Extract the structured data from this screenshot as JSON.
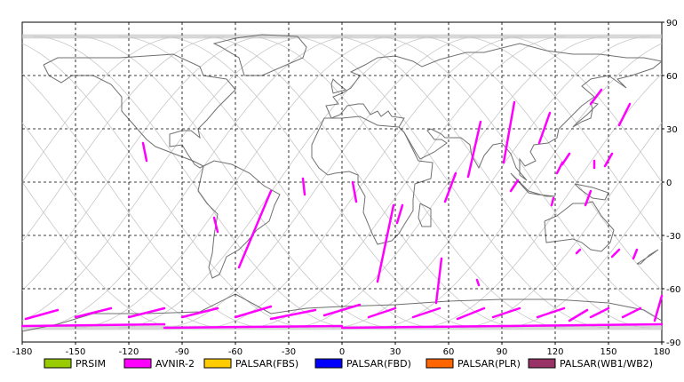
{
  "chart_data": {
    "type": "scatter",
    "title": "",
    "xlabel": "",
    "ylabel": "",
    "xlim": [
      -180,
      180
    ],
    "ylim": [
      -90,
      90
    ],
    "x_ticks": [
      -180,
      -150,
      -120,
      -90,
      -60,
      -30,
      0,
      30,
      60,
      90,
      120,
      150,
      180
    ],
    "y_ticks": [
      90,
      60,
      30,
      0,
      -30,
      -60,
      -90
    ],
    "x_tick_labels": [
      "-180",
      "-150",
      "-120",
      "-90",
      "-60",
      "-30",
      "0",
      "30",
      "60",
      "90",
      "120",
      "150",
      "180"
    ],
    "y_tick_labels": [
      "90",
      "60",
      "30",
      "0",
      "-30",
      "-60",
      "-90"
    ],
    "grid": true,
    "legend_position": "bottom",
    "legend": [
      {
        "label": "PRSIM",
        "color": "#99cc00"
      },
      {
        "label": "AVNIR-2",
        "color": "#ff00ff"
      },
      {
        "label": "PALSAR(FBS)",
        "color": "#ffcc00"
      },
      {
        "label": "PALSAR(FBD)",
        "color": "#0000ff"
      },
      {
        "label": "PALSAR(PLR)",
        "color": "#ff6600"
      },
      {
        "label": "PALSAR(WB1/WB2)",
        "color": "#993366"
      }
    ],
    "series": [
      {
        "name": "AVNIR-2",
        "color": "#ff00ff",
        "segments": [
          [
            [
              -112,
              22
            ],
            [
              -110,
              12
            ]
          ],
          [
            [
              -72,
              -20
            ],
            [
              -70,
              -28
            ]
          ],
          [
            [
              -58,
              -48
            ],
            [
              -40,
              -5
            ]
          ],
          [
            [
              -22,
              2
            ],
            [
              -21,
              -7
            ]
          ],
          [
            [
              6,
              0
            ],
            [
              8,
              -11
            ]
          ],
          [
            [
              20,
              -56
            ],
            [
              29,
              -13
            ]
          ],
          [
            [
              31,
              -23
            ],
            [
              34,
              -13
            ]
          ],
          [
            [
              53,
              -68
            ],
            [
              56,
              -43
            ]
          ],
          [
            [
              58,
              -11
            ],
            [
              64,
              5
            ]
          ],
          [
            [
              77,
              -58
            ],
            [
              76,
              -55
            ]
          ],
          [
            [
              71,
              3
            ],
            [
              78,
              34
            ]
          ],
          [
            [
              95,
              -5
            ],
            [
              99,
              1
            ]
          ],
          [
            [
              91,
              11
            ],
            [
              97,
              45
            ]
          ],
          [
            [
              111,
              22
            ],
            [
              117,
              39
            ]
          ],
          [
            [
              118,
              -13
            ],
            [
              119,
              -9
            ]
          ],
          [
            [
              121,
              5
            ],
            [
              124,
              11
            ]
          ],
          [
            [
              124,
              10
            ],
            [
              128,
              16
            ]
          ],
          [
            [
              137,
              -13
            ],
            [
              140,
              -5
            ]
          ],
          [
            [
              132,
              -40
            ],
            [
              134,
              -38
            ]
          ],
          [
            [
              142,
              8
            ],
            [
              142,
              12
            ]
          ],
          [
            [
              148,
              9
            ],
            [
              152,
              16
            ]
          ],
          [
            [
              140,
              44
            ],
            [
              146,
              52
            ]
          ],
          [
            [
              152,
              -42
            ],
            [
              156,
              -38
            ]
          ],
          [
            [
              156,
              32
            ],
            [
              162,
              44
            ]
          ],
          [
            [
              164,
              -43
            ],
            [
              166,
              -38
            ]
          ],
          [
            [
              176,
              -78
            ],
            [
              180,
              -64
            ]
          ],
          [
            [
              -178,
              -77
            ],
            [
              -160,
              -72
            ]
          ],
          [
            [
              -150,
              -76
            ],
            [
              -130,
              -71
            ]
          ],
          [
            [
              -120,
              -76
            ],
            [
              -100,
              -71
            ]
          ],
          [
            [
              -90,
              -76
            ],
            [
              -70,
              -71
            ]
          ],
          [
            [
              -60,
              -76
            ],
            [
              -40,
              -70
            ]
          ],
          [
            [
              -40,
              -77
            ],
            [
              -15,
              -72
            ]
          ],
          [
            [
              -10,
              -75
            ],
            [
              10,
              -69
            ]
          ],
          [
            [
              15,
              -76
            ],
            [
              30,
              -71
            ]
          ],
          [
            [
              40,
              -76
            ],
            [
              55,
              -71
            ]
          ],
          [
            [
              65,
              -77
            ],
            [
              80,
              -71
            ]
          ],
          [
            [
              85,
              -76
            ],
            [
              100,
              -71
            ]
          ],
          [
            [
              110,
              -76
            ],
            [
              125,
              -71
            ]
          ],
          [
            [
              128,
              -78
            ],
            [
              138,
              -72
            ]
          ],
          [
            [
              140,
              -76
            ],
            [
              150,
              -71
            ]
          ],
          [
            [
              158,
              -76
            ],
            [
              168,
              -71
            ]
          ],
          [
            [
              -180,
              -81
            ],
            [
              -100,
              -80
            ]
          ],
          [
            [
              -100,
              -82
            ],
            [
              0,
              -81
            ]
          ],
          [
            [
              0,
              -82
            ],
            [
              180,
              -80
            ]
          ]
        ]
      }
    ]
  }
}
